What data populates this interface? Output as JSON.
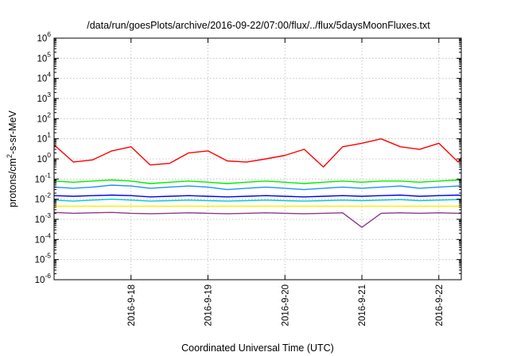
{
  "chart_data": {
    "type": "line",
    "title": "/data/run/goesPlots/archive/2016-09-22/07:00/flux/../flux/5daysMoonFluxes.txt",
    "xlabel": "Coordinated Universal Time (UTC)",
    "ylabel_parts": [
      "protons/cm",
      "2",
      "-s-sr-MeV"
    ],
    "xlim": [
      "2016-09-17T00:00",
      "2016-09-22T07:00"
    ],
    "x_ticks": [
      "2016-9-18",
      "2016-9-19",
      "2016-9-20",
      "2016-9-21",
      "2016-9-22"
    ],
    "y_scale": "log",
    "ylim": [
      1e-06,
      1000000.0
    ],
    "y_tick_exponents": [
      -6,
      -5,
      -4,
      -3,
      -2,
      -1,
      0,
      1,
      2,
      3,
      4,
      5,
      6
    ],
    "grid": true,
    "x": [
      "2016-09-17T00:00",
      "2016-09-17T06:00",
      "2016-09-17T12:00",
      "2016-09-17T18:00",
      "2016-09-18T00:00",
      "2016-09-18T06:00",
      "2016-09-18T12:00",
      "2016-09-18T18:00",
      "2016-09-19T00:00",
      "2016-09-19T06:00",
      "2016-09-19T12:00",
      "2016-09-19T18:00",
      "2016-09-20T00:00",
      "2016-09-20T06:00",
      "2016-09-20T12:00",
      "2016-09-20T18:00",
      "2016-09-21T00:00",
      "2016-09-21T06:00",
      "2016-09-21T12:00",
      "2016-09-21T18:00",
      "2016-09-22T00:00",
      "2016-09-22T06:00",
      "2016-09-22T07:00"
    ],
    "series": [
      {
        "color": "#ff0000",
        "values": [
          5,
          0.7,
          0.9,
          2.5,
          4,
          0.5,
          0.6,
          2,
          2.5,
          0.8,
          0.7,
          1,
          1.5,
          3,
          0.4,
          4,
          6,
          10,
          4,
          3,
          6,
          0.7,
          1.2
        ]
      },
      {
        "color": "#00ee00",
        "values": [
          0.08,
          0.07,
          0.08,
          0.09,
          0.08,
          0.06,
          0.07,
          0.08,
          0.07,
          0.06,
          0.07,
          0.08,
          0.07,
          0.06,
          0.07,
          0.08,
          0.07,
          0.08,
          0.08,
          0.07,
          0.08,
          0.09,
          0.08
        ]
      },
      {
        "color": "#1e90ff",
        "values": [
          0.04,
          0.035,
          0.04,
          0.05,
          0.045,
          0.035,
          0.04,
          0.045,
          0.04,
          0.03,
          0.035,
          0.04,
          0.035,
          0.03,
          0.035,
          0.04,
          0.035,
          0.04,
          0.045,
          0.035,
          0.04,
          0.045,
          0.04
        ]
      },
      {
        "color": "#0000ff",
        "values": [
          0.015,
          0.014,
          0.015,
          0.016,
          0.015,
          0.013,
          0.014,
          0.015,
          0.014,
          0.013,
          0.014,
          0.015,
          0.014,
          0.013,
          0.014,
          0.015,
          0.014,
          0.015,
          0.016,
          0.014,
          0.015,
          0.016,
          0.015
        ]
      },
      {
        "color": "#00cccc",
        "values": [
          0.009,
          0.008,
          0.009,
          0.01,
          0.009,
          0.008,
          0.0085,
          0.009,
          0.0085,
          0.008,
          0.0085,
          0.009,
          0.0085,
          0.008,
          0.0085,
          0.009,
          0.0085,
          0.009,
          0.0095,
          0.0085,
          0.009,
          0.0095,
          0.009
        ]
      },
      {
        "color": "#ffee00",
        "values": [
          0.0045,
          0.0045,
          0.0045,
          0.0045,
          0.0045,
          0.0045,
          0.0045,
          0.0045,
          0.0045,
          0.0045,
          0.0045,
          0.0045,
          0.0045,
          0.0045,
          0.0045,
          0.0045,
          0.0045,
          0.0045,
          0.0045,
          0.0045,
          0.0045,
          0.0045,
          0.0045
        ]
      },
      {
        "color": "#8b3a8b",
        "values": [
          0.0022,
          0.002,
          0.0021,
          0.0022,
          0.002,
          0.0019,
          0.002,
          0.0021,
          0.002,
          0.0019,
          0.002,
          0.0021,
          0.002,
          0.0019,
          0.002,
          0.0021,
          0.0004,
          0.002,
          0.0021,
          0.002,
          0.0021,
          0.002,
          0.0021
        ]
      }
    ]
  }
}
